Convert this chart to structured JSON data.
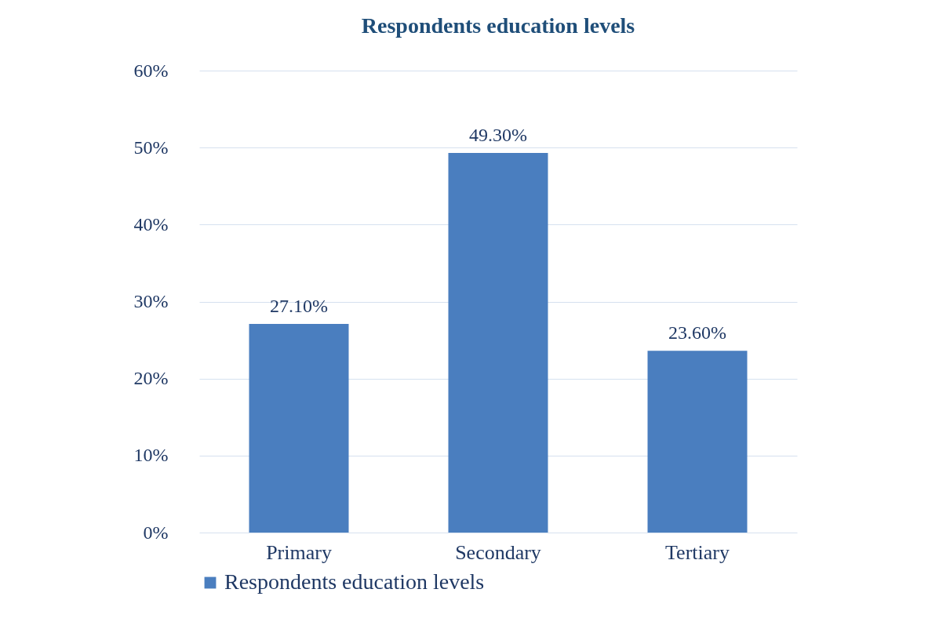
{
  "chart_data": {
    "type": "bar",
    "title": "Respondents education levels",
    "categories": [
      "Primary",
      "Secondary",
      "Tertiary"
    ],
    "series": [
      {
        "name": "Respondents education levels",
        "color": "#4a7ebf",
        "values": [
          27.1,
          49.3,
          23.6
        ],
        "value_labels": [
          "27.10%",
          "49.30%",
          "23.60%"
        ]
      }
    ],
    "ylim": [
      0,
      60
    ],
    "yticks": [
      {
        "value": 0,
        "label": "0%"
      },
      {
        "value": 10,
        "label": "10%"
      },
      {
        "value": 20,
        "label": "20%"
      },
      {
        "value": 30,
        "label": "30%"
      },
      {
        "value": 40,
        "label": "40%"
      },
      {
        "value": 50,
        "label": "50%"
      },
      {
        "value": 60,
        "label": "60%"
      }
    ],
    "grid": "y",
    "legend": "bottom"
  }
}
